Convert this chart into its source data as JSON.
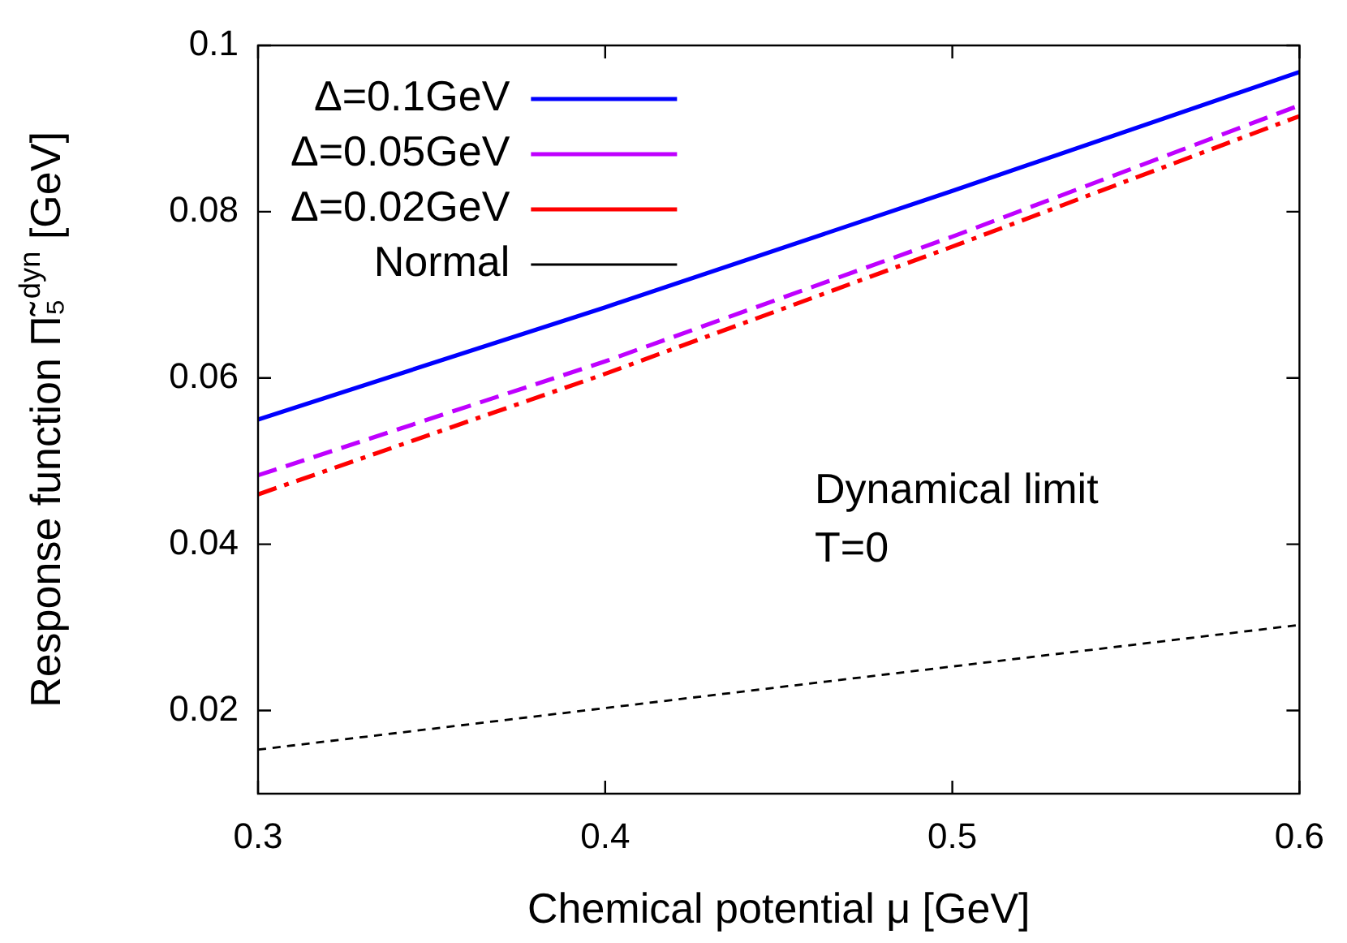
{
  "chart_data": {
    "type": "line",
    "xlabel": "Chemical potential μ [GeV]",
    "ylabel": "Response function Π̃₅$^{dyn}$ [GeV]",
    "x": [
      0.3,
      0.4,
      0.5,
      0.6
    ],
    "xlim": [
      0.3,
      0.6
    ],
    "xticks": [
      0.3,
      0.4,
      0.5,
      0.6
    ],
    "ylim": [
      0.01,
      0.1
    ],
    "yticks": [
      0.02,
      0.04,
      0.06,
      0.08,
      0.1
    ],
    "series": [
      {
        "name": "Δ=0.1GeV",
        "color": "#0000ff",
        "line_style": "solid",
        "values": [
          0.055,
          0.0685,
          0.0825,
          0.0968
        ]
      },
      {
        "name": "Δ=0.05GeV",
        "color": "#bf00ff",
        "line_style": "dashed",
        "values": [
          0.0483,
          0.062,
          0.077,
          0.0928
        ]
      },
      {
        "name": "Δ=0.02GeV",
        "color": "#ff0000",
        "line_style": "dashdot",
        "values": [
          0.046,
          0.0605,
          0.0758,
          0.0915
        ]
      },
      {
        "name": "Normal",
        "color": "#000000",
        "line_style": "dotted",
        "values": [
          0.0153,
          0.0203,
          0.0253,
          0.0303
        ]
      }
    ],
    "annotations": [
      "Dynamical limit",
      "T=0"
    ],
    "legend": "top left",
    "grid": false,
    "marker": "none"
  }
}
